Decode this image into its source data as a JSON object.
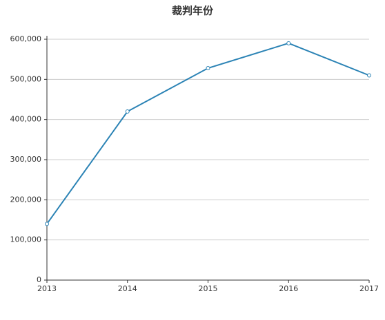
{
  "chart_data": {
    "type": "line",
    "title": "裁判年份",
    "categories": [
      "2013",
      "2014",
      "2015",
      "2016",
      "2017"
    ],
    "series": [
      {
        "color": "#2b83b5",
        "values": [
          140000,
          420000,
          528000,
          590000,
          510000
        ]
      }
    ],
    "ylim": [
      0,
      600000
    ],
    "yticks": [
      0,
      {
        "value": 100000,
        "label": "100,000"
      },
      {
        "value": 200000,
        "label": "200,000"
      },
      {
        "value": 300000,
        "label": "300,000"
      },
      {
        "value": 400000,
        "label": "400,000"
      },
      {
        "value": 500000,
        "label": "500,000"
      },
      {
        "value": 600000,
        "label": "600,000"
      }
    ],
    "grid": true
  }
}
